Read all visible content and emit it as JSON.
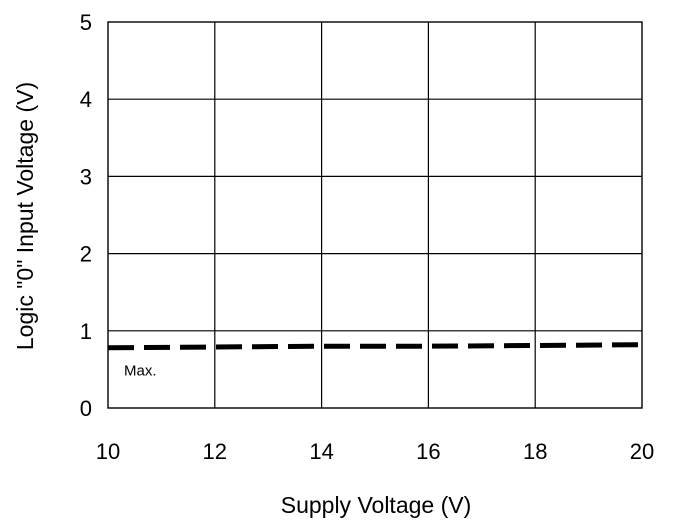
{
  "chart_data": {
    "type": "line",
    "xlabel": "Supply Voltage (V)",
    "ylabel": "Logic \"0\" Input Voltage (V)",
    "xlim": [
      10,
      20
    ],
    "ylim": [
      0,
      5
    ],
    "x_ticks": [
      10,
      12,
      14,
      16,
      18,
      20
    ],
    "y_ticks": [
      0,
      1,
      2,
      3,
      4,
      5
    ],
    "grid": true,
    "series": [
      {
        "name": "Max.",
        "line_style": "dashed",
        "color": "#000000",
        "x": [
          10,
          12,
          14,
          16,
          18,
          20
        ],
        "y": [
          0.78,
          0.79,
          0.8,
          0.8,
          0.81,
          0.82
        ]
      }
    ],
    "annotations": [
      {
        "text": "Max.",
        "x": 10.3,
        "y": 0.55
      }
    ]
  }
}
